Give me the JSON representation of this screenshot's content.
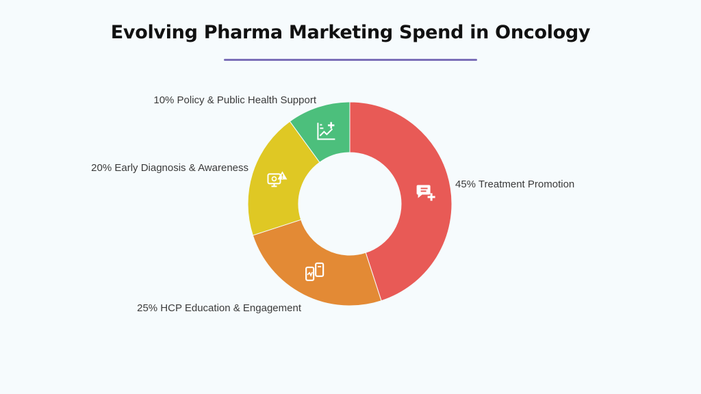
{
  "title": "Evolving Pharma Marketing Spend in Oncology",
  "colors": {
    "accent_underline": "#7b6fb8",
    "background": "#f6fbfd"
  },
  "chart_data": {
    "type": "pie",
    "donut": true,
    "title": "Evolving Pharma Marketing Spend in Oncology",
    "slices": [
      {
        "label": "45% Treatment Promotion",
        "category": "Treatment Promotion",
        "value": 45,
        "color": "#e85a56",
        "icon": "chat-plus-icon"
      },
      {
        "label": "25% HCP Education & Engagement",
        "category": "HCP Education & Engagement",
        "value": 25,
        "color": "#e38a35",
        "icon": "devices-chart-icon"
      },
      {
        "label": "20% Early Diagnosis & Awareness",
        "category": "Early Diagnosis & Awareness",
        "value": 20,
        "color": "#dfc824",
        "icon": "monitor-alert-icon"
      },
      {
        "label": "10% Policy & Public Health Support",
        "category": "Policy & Public Health Support",
        "value": 10,
        "color": "#4cbf7c",
        "icon": "chart-plus-icon"
      }
    ]
  }
}
